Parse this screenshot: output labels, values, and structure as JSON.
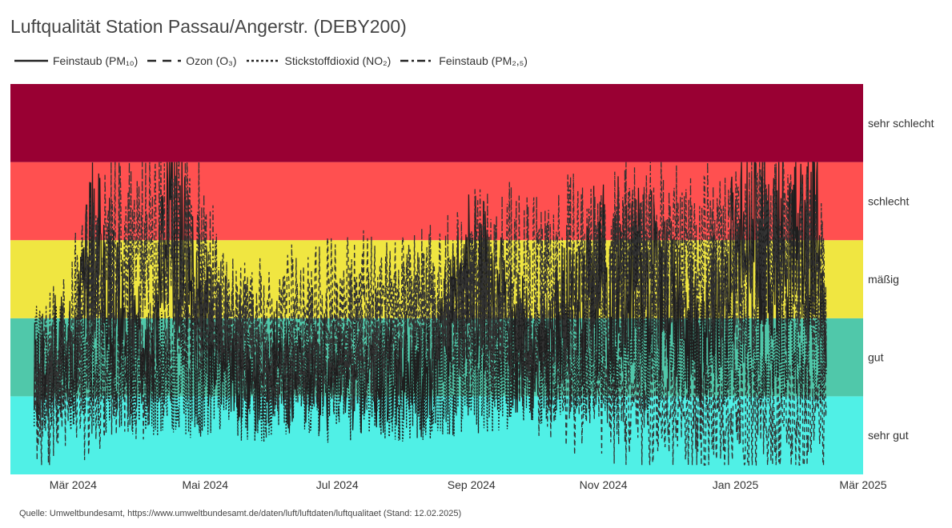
{
  "title": "Luftqualität Station Passau/Angerstr. (DEBY200)",
  "source": "Quelle: Umweltbundesamt, https://www.umweltbundesamt.de/daten/luft/luftdaten/luftqualitaet (Stand: 12.02.2025)",
  "colors": {
    "sehr_schlecht": "#990033",
    "schlecht": "#ff5050",
    "maessig": "#f0e641",
    "gut": "#50c8aa",
    "sehr_gut": "#50f0e6",
    "line": "#222222",
    "line_alt": "#555555"
  },
  "chart_data": {
    "type": "line",
    "title": "Luftqualität Station Passau/Angerstr. (DEBY200)",
    "xlabel": "",
    "ylabel": "",
    "x_range": [
      "2024-02-01",
      "2025-03-01"
    ],
    "y_range": [
      0,
      5
    ],
    "x_ticks": [
      "Mär 2024",
      "Mai 2024",
      "Jul 2024",
      "Sep 2024",
      "Nov 2024",
      "Jan 2025",
      "Mär 2025"
    ],
    "bands": [
      {
        "label": "sehr gut",
        "from": 0,
        "to": 1,
        "color": "#50f0e6"
      },
      {
        "label": "gut",
        "from": 1,
        "to": 2,
        "color": "#50c8aa"
      },
      {
        "label": "mäßig",
        "from": 2,
        "to": 3,
        "color": "#f0e641"
      },
      {
        "label": "schlecht",
        "from": 3,
        "to": 4,
        "color": "#ff5050"
      },
      {
        "label": "sehr schlecht",
        "from": 4,
        "to": 5,
        "color": "#990033"
      }
    ],
    "legend_position": "top-left",
    "data_start": "2024-02-12",
    "data_end": "2025-02-12",
    "series": [
      {
        "name": "Feinstaub (PM₁₀)",
        "dash": "solid",
        "values": [
          {
            "date": "2024-02-12",
            "v": 1.5
          },
          {
            "date": "2024-03-01",
            "v": 1.9
          },
          {
            "date": "2024-03-10",
            "v": 3.4
          },
          {
            "date": "2024-03-20",
            "v": 2.6
          },
          {
            "date": "2024-04-05",
            "v": 1.6
          },
          {
            "date": "2024-04-14",
            "v": 4.0
          },
          {
            "date": "2024-04-24",
            "v": 3.0
          },
          {
            "date": "2024-05-15",
            "v": 1.7
          },
          {
            "date": "2024-06-15",
            "v": 1.6
          },
          {
            "date": "2024-07-15",
            "v": 1.5
          },
          {
            "date": "2024-08-15",
            "v": 1.6
          },
          {
            "date": "2024-09-01",
            "v": 3.1
          },
          {
            "date": "2024-10-01",
            "v": 1.8
          },
          {
            "date": "2024-10-25",
            "v": 3.0
          },
          {
            "date": "2024-11-10",
            "v": 3.0
          },
          {
            "date": "2024-11-18",
            "v": 3.4
          },
          {
            "date": "2024-12-15",
            "v": 2.2
          },
          {
            "date": "2025-01-05",
            "v": 3.5
          },
          {
            "date": "2025-01-20",
            "v": 3.5
          },
          {
            "date": "2025-02-02",
            "v": 3.6
          },
          {
            "date": "2025-02-08",
            "v": 3.5
          },
          {
            "date": "2025-02-12",
            "v": 3.0
          }
        ]
      },
      {
        "name": "Ozon (O₃)",
        "dash": "dashed",
        "values": [
          {
            "date": "2024-02-12",
            "v": 0.8
          },
          {
            "date": "2024-04-01",
            "v": 1.3
          },
          {
            "date": "2024-05-15",
            "v": 1.9
          },
          {
            "date": "2024-06-15",
            "v": 2.1
          },
          {
            "date": "2024-07-15",
            "v": 2.3
          },
          {
            "date": "2024-08-15",
            "v": 2.1
          },
          {
            "date": "2024-09-15",
            "v": 1.7
          },
          {
            "date": "2024-10-15",
            "v": 1.2
          },
          {
            "date": "2024-12-01",
            "v": 0.8
          },
          {
            "date": "2025-02-12",
            "v": 0.7
          }
        ]
      },
      {
        "name": "Stickstoffdioxid (NO₂)",
        "dash": "dotted",
        "values": [
          {
            "date": "2024-02-12",
            "v": 1.4
          },
          {
            "date": "2024-04-01",
            "v": 1.3
          },
          {
            "date": "2024-06-01",
            "v": 1.2
          },
          {
            "date": "2024-08-01",
            "v": 1.2
          },
          {
            "date": "2024-10-01",
            "v": 1.4
          },
          {
            "date": "2024-12-01",
            "v": 1.6
          },
          {
            "date": "2025-02-12",
            "v": 1.7
          }
        ]
      },
      {
        "name": "Feinstaub (PM₂,₅)",
        "dash": "dashdot",
        "values": [
          {
            "date": "2024-02-12",
            "v": 1.3
          },
          {
            "date": "2024-03-10",
            "v": 3.2
          },
          {
            "date": "2024-04-14",
            "v": 3.9
          },
          {
            "date": "2024-06-01",
            "v": 1.4
          },
          {
            "date": "2024-09-01",
            "v": 2.9
          },
          {
            "date": "2024-11-18",
            "v": 3.3
          },
          {
            "date": "2025-01-20",
            "v": 3.4
          },
          {
            "date": "2025-02-12",
            "v": 3.0
          }
        ]
      }
    ]
  }
}
